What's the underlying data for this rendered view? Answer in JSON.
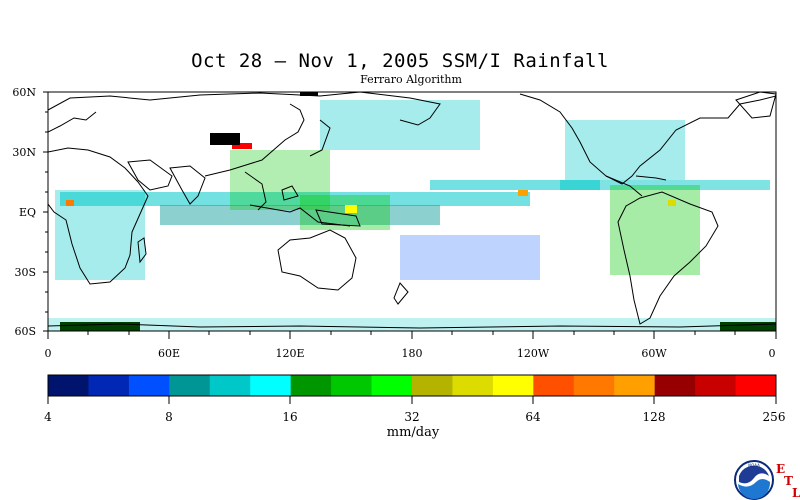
{
  "title": "Oct 28 – Nov 1, 2005 SSM/I Rainfall",
  "subtitle": "Ferraro Algorithm",
  "map": {
    "lat_labels": [
      "60N",
      "30N",
      "EQ",
      "30S",
      "60S"
    ],
    "lon_labels": [
      "0",
      "60E",
      "120E",
      "180",
      "120W",
      "60W",
      "0"
    ]
  },
  "colorbar": {
    "unit": "mm/day",
    "tick_labels": [
      "4",
      "8",
      "16",
      "32",
      "64",
      "128",
      "256"
    ],
    "colors": [
      "#00146e",
      "#0028b4",
      "#0050ff",
      "#009696",
      "#00c8c8",
      "#00ffff",
      "#009600",
      "#00c800",
      "#00ff00",
      "#b4b400",
      "#dcdc00",
      "#ffff00",
      "#ff5000",
      "#ff7800",
      "#ffa000",
      "#960000",
      "#c80000",
      "#ff0000"
    ]
  },
  "logo": {
    "agency": "NOAA",
    "letters": [
      "E",
      "T",
      "L"
    ]
  }
}
